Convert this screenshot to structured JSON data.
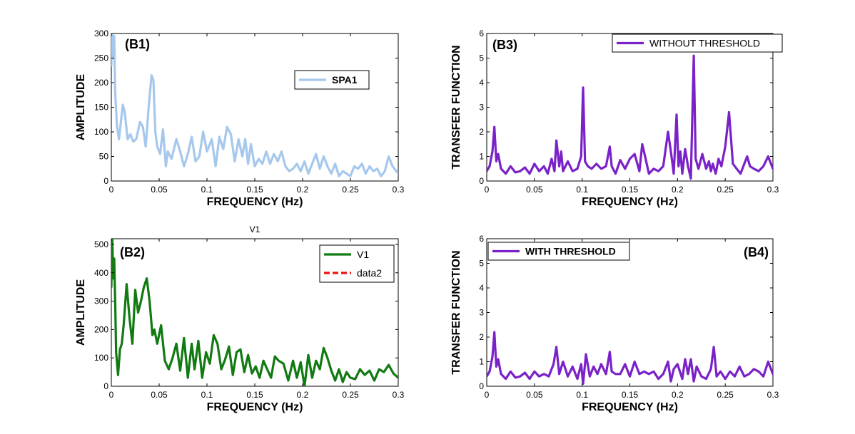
{
  "chart_data": [
    {
      "id": "B1",
      "type": "line",
      "panel_label": "(B1)",
      "title": "",
      "xlabel": "FREQUENCY (Hz)",
      "ylabel": "AMPLITUDE",
      "xlim": [
        0,
        0.3
      ],
      "ylim": [
        0,
        300
      ],
      "xticks": [
        0,
        0.05,
        0.1,
        0.15,
        0.2,
        0.25,
        0.3
      ],
      "xtick_labels": [
        "0",
        "0.05",
        "0.1",
        "0.15",
        "0.2",
        "0.25",
        "0.3"
      ],
      "yticks": [
        0,
        50,
        100,
        150,
        200,
        250,
        300
      ],
      "ytick_labels": [
        "0",
        "50",
        "100",
        "150",
        "200",
        "250",
        "300"
      ],
      "legend": {
        "position": "top-right",
        "entries": [
          "SPA1"
        ]
      },
      "series": [
        {
          "name": "SPA1",
          "color": "#a6c8ec",
          "style": "solid",
          "x": [
            0,
            0.001,
            0.002,
            0.003,
            0.004,
            0.006,
            0.008,
            0.01,
            0.012,
            0.014,
            0.017,
            0.02,
            0.023,
            0.026,
            0.03,
            0.033,
            0.036,
            0.039,
            0.042,
            0.044,
            0.046,
            0.048,
            0.051,
            0.054,
            0.057,
            0.059,
            0.063,
            0.068,
            0.072,
            0.076,
            0.08,
            0.084,
            0.088,
            0.092,
            0.096,
            0.1,
            0.105,
            0.109,
            0.113,
            0.117,
            0.121,
            0.125,
            0.129,
            0.133,
            0.137,
            0.14,
            0.143,
            0.146,
            0.15,
            0.154,
            0.158,
            0.162,
            0.166,
            0.17,
            0.174,
            0.178,
            0.182,
            0.186,
            0.19,
            0.194,
            0.198,
            0.202,
            0.206,
            0.21,
            0.214,
            0.218,
            0.222,
            0.226,
            0.23,
            0.234,
            0.238,
            0.242,
            0.246,
            0.25,
            0.254,
            0.258,
            0.262,
            0.266,
            0.27,
            0.274,
            0.278,
            0.282,
            0.286,
            0.29,
            0.294,
            0.3
          ],
          "y": [
            235,
            300,
            250,
            295,
            180,
            110,
            85,
            120,
            155,
            140,
            85,
            95,
            80,
            85,
            120,
            110,
            70,
            150,
            215,
            205,
            100,
            70,
            55,
            105,
            30,
            60,
            45,
            85,
            60,
            30,
            55,
            90,
            40,
            50,
            100,
            60,
            85,
            30,
            90,
            65,
            110,
            95,
            40,
            85,
            50,
            85,
            35,
            75,
            30,
            45,
            35,
            60,
            35,
            55,
            40,
            60,
            30,
            20,
            25,
            35,
            20,
            40,
            15,
            35,
            55,
            25,
            50,
            30,
            15,
            35,
            10,
            20,
            15,
            10,
            30,
            25,
            35,
            15,
            30,
            20,
            25,
            10,
            20,
            50,
            30,
            15
          ]
        }
      ]
    },
    {
      "id": "B2",
      "type": "line",
      "panel_label": "(B2)",
      "title": "V1",
      "xlabel": "FREQUENCY (Hz)",
      "ylabel": "AMPLITUDE",
      "xlim": [
        0,
        0.3
      ],
      "ylim": [
        0,
        520
      ],
      "xticks": [
        0,
        0.05,
        0.1,
        0.15,
        0.2,
        0.25,
        0.3
      ],
      "xtick_labels": [
        "0",
        "0.05",
        "0.1",
        "0.15",
        "0.2",
        "0.25",
        "0.3"
      ],
      "yticks": [
        0,
        100,
        200,
        300,
        400,
        500
      ],
      "ytick_labels": [
        "0",
        "100",
        "200",
        "300",
        "400",
        "500"
      ],
      "legend": {
        "position": "top-right",
        "entries": [
          "V1",
          "data2"
        ]
      },
      "series": [
        {
          "name": "V1",
          "color": "#117a11",
          "style": "solid",
          "x": [
            0,
            0.001,
            0.002,
            0.003,
            0.004,
            0.005,
            0.007,
            0.009,
            0.011,
            0.013,
            0.016,
            0.019,
            0.022,
            0.025,
            0.028,
            0.031,
            0.034,
            0.037,
            0.04,
            0.043,
            0.045,
            0.048,
            0.052,
            0.056,
            0.06,
            0.064,
            0.068,
            0.072,
            0.076,
            0.08,
            0.084,
            0.087,
            0.091,
            0.095,
            0.099,
            0.103,
            0.107,
            0.111,
            0.115,
            0.119,
            0.123,
            0.127,
            0.131,
            0.135,
            0.139,
            0.143,
            0.147,
            0.151,
            0.155,
            0.159,
            0.163,
            0.167,
            0.171,
            0.175,
            0.18,
            0.185,
            0.19,
            0.194,
            0.198,
            0.202,
            0.206,
            0.21,
            0.214,
            0.218,
            0.222,
            0.226,
            0.23,
            0.234,
            0.238,
            0.242,
            0.246,
            0.25,
            0.255,
            0.26,
            0.265,
            0.27,
            0.275,
            0.28,
            0.285,
            0.29,
            0.295,
            0.3
          ],
          "y": [
            350,
            520,
            380,
            450,
            300,
            120,
            40,
            130,
            150,
            220,
            360,
            240,
            150,
            340,
            260,
            300,
            350,
            380,
            300,
            180,
            200,
            150,
            215,
            90,
            60,
            100,
            150,
            55,
            170,
            30,
            150,
            60,
            160,
            30,
            120,
            80,
            180,
            150,
            60,
            95,
            140,
            40,
            120,
            130,
            50,
            110,
            45,
            70,
            30,
            90,
            60,
            30,
            105,
            90,
            80,
            20,
            90,
            30,
            85,
            0,
            110,
            30,
            90,
            60,
            135,
            100,
            55,
            20,
            60,
            15,
            50,
            30,
            25,
            60,
            40,
            55,
            20,
            60,
            50,
            75,
            45,
            30
          ]
        },
        {
          "name": "data2",
          "color": "#ee1111",
          "style": "dashed",
          "x": [],
          "y": []
        }
      ]
    },
    {
      "id": "B3",
      "type": "line",
      "panel_label": "(B3)",
      "title": "",
      "xlabel": "FREQUENCY (Hz)",
      "ylabel": "TRANSFER FUNCTION",
      "xlim": [
        0,
        0.3
      ],
      "ylim": [
        0,
        6
      ],
      "xticks": [
        0,
        0.05,
        0.1,
        0.15,
        0.2,
        0.25,
        0.3
      ],
      "xtick_labels": [
        "0",
        "0.05",
        "0.1",
        "0.15",
        "0.2",
        "0.25",
        "0.3"
      ],
      "yticks": [
        0,
        1,
        2,
        3,
        4,
        5,
        6
      ],
      "ytick_labels": [
        "0",
        "1",
        "2",
        "3",
        "4",
        "5",
        "6"
      ],
      "legend": {
        "position": "top-right",
        "entries": [
          "WITHOUT THRESHOLD"
        ]
      },
      "series": [
        {
          "name": "WITHOUT THRESHOLD",
          "color": "#7a22c8",
          "style": "solid",
          "x": [
            0,
            0.003,
            0.006,
            0.008,
            0.01,
            0.012,
            0.015,
            0.02,
            0.025,
            0.03,
            0.035,
            0.04,
            0.045,
            0.05,
            0.055,
            0.06,
            0.064,
            0.068,
            0.071,
            0.073,
            0.076,
            0.078,
            0.08,
            0.085,
            0.09,
            0.095,
            0.099,
            0.101,
            0.103,
            0.106,
            0.11,
            0.115,
            0.12,
            0.125,
            0.129,
            0.131,
            0.135,
            0.14,
            0.145,
            0.15,
            0.155,
            0.16,
            0.163,
            0.166,
            0.17,
            0.175,
            0.18,
            0.185,
            0.19,
            0.193,
            0.196,
            0.199,
            0.201,
            0.203,
            0.205,
            0.208,
            0.211,
            0.214,
            0.217,
            0.219,
            0.222,
            0.226,
            0.23,
            0.233,
            0.235,
            0.237,
            0.24,
            0.243,
            0.246,
            0.25,
            0.254,
            0.258,
            0.262,
            0.266,
            0.27,
            0.273,
            0.276,
            0.28,
            0.285,
            0.29,
            0.295,
            0.3
          ],
          "y": [
            0.4,
            0.6,
            1.2,
            2.2,
            0.8,
            1.1,
            0.5,
            0.3,
            0.6,
            0.35,
            0.4,
            0.55,
            0.3,
            0.7,
            0.4,
            0.6,
            0.3,
            0.9,
            0.4,
            1.65,
            0.6,
            1.2,
            0.4,
            0.8,
            0.4,
            0.5,
            1.0,
            3.8,
            0.8,
            0.6,
            0.5,
            0.7,
            0.5,
            0.6,
            1.4,
            0.6,
            0.3,
            0.85,
            0.5,
            0.9,
            1.1,
            0.4,
            1.5,
            1.0,
            0.3,
            0.5,
            0.4,
            0.6,
            2.0,
            1.2,
            0.3,
            2.7,
            0.6,
            1.2,
            0.3,
            1.3,
            0.6,
            0.1,
            5.1,
            0.9,
            0.5,
            1.1,
            0.5,
            0.8,
            0.4,
            0.7,
            0.3,
            0.9,
            0.6,
            1.4,
            2.8,
            0.7,
            0.5,
            0.3,
            0.7,
            1.0,
            0.6,
            0.5,
            0.4,
            0.6,
            1.0,
            0.5
          ]
        }
      ]
    },
    {
      "id": "B4",
      "type": "line",
      "panel_label": "(B4)",
      "title": "",
      "xlabel": "FREQUENCY (Hz)",
      "ylabel": "TRANSFER FUNCTION",
      "xlim": [
        0,
        0.3
      ],
      "ylim": [
        0,
        6
      ],
      "xticks": [
        0,
        0.05,
        0.1,
        0.15,
        0.2,
        0.25,
        0.3
      ],
      "xtick_labels": [
        "0",
        "0.05",
        "0.1",
        "0.15",
        "0.2",
        "0.25",
        "0.3"
      ],
      "yticks": [
        0,
        1,
        2,
        3,
        4,
        5,
        6
      ],
      "ytick_labels": [
        "0",
        "1",
        "2",
        "3",
        "4",
        "5",
        "6"
      ],
      "legend": {
        "position": "top-left",
        "entries": [
          "WITH THRESHOLD"
        ]
      },
      "series": [
        {
          "name": "WITH THRESHOLD",
          "color": "#7a22c8",
          "style": "solid",
          "x": [
            0,
            0.003,
            0.006,
            0.008,
            0.01,
            0.012,
            0.015,
            0.02,
            0.025,
            0.03,
            0.035,
            0.04,
            0.045,
            0.05,
            0.055,
            0.06,
            0.065,
            0.07,
            0.073,
            0.076,
            0.08,
            0.085,
            0.09,
            0.095,
            0.099,
            0.101,
            0.104,
            0.108,
            0.112,
            0.116,
            0.12,
            0.125,
            0.129,
            0.131,
            0.135,
            0.14,
            0.145,
            0.15,
            0.155,
            0.16,
            0.165,
            0.17,
            0.175,
            0.18,
            0.185,
            0.19,
            0.193,
            0.196,
            0.2,
            0.205,
            0.208,
            0.211,
            0.214,
            0.217,
            0.22,
            0.225,
            0.23,
            0.235,
            0.238,
            0.241,
            0.245,
            0.25,
            0.255,
            0.26,
            0.265,
            0.27,
            0.275,
            0.28,
            0.285,
            0.29,
            0.295,
            0.3
          ],
          "y": [
            0.4,
            0.6,
            1.2,
            2.2,
            0.8,
            1.1,
            0.5,
            0.3,
            0.6,
            0.35,
            0.4,
            0.55,
            0.3,
            0.6,
            0.4,
            0.5,
            0.4,
            0.9,
            1.6,
            0.5,
            1.0,
            0.4,
            0.8,
            0.3,
            0.9,
            0.1,
            1.3,
            0.4,
            0.8,
            0.5,
            0.9,
            0.5,
            1.4,
            0.6,
            0.5,
            0.5,
            0.9,
            0.4,
            1.0,
            0.5,
            0.6,
            0.5,
            0.6,
            0.3,
            0.5,
            1.0,
            0.2,
            0.7,
            0.9,
            0.3,
            1.1,
            0.5,
            1.1,
            0.2,
            0.8,
            0.4,
            0.3,
            0.7,
            1.6,
            0.4,
            0.6,
            0.3,
            0.6,
            0.4,
            0.8,
            0.4,
            0.5,
            0.7,
            0.6,
            0.4,
            1.0,
            0.5
          ]
        }
      ]
    }
  ]
}
